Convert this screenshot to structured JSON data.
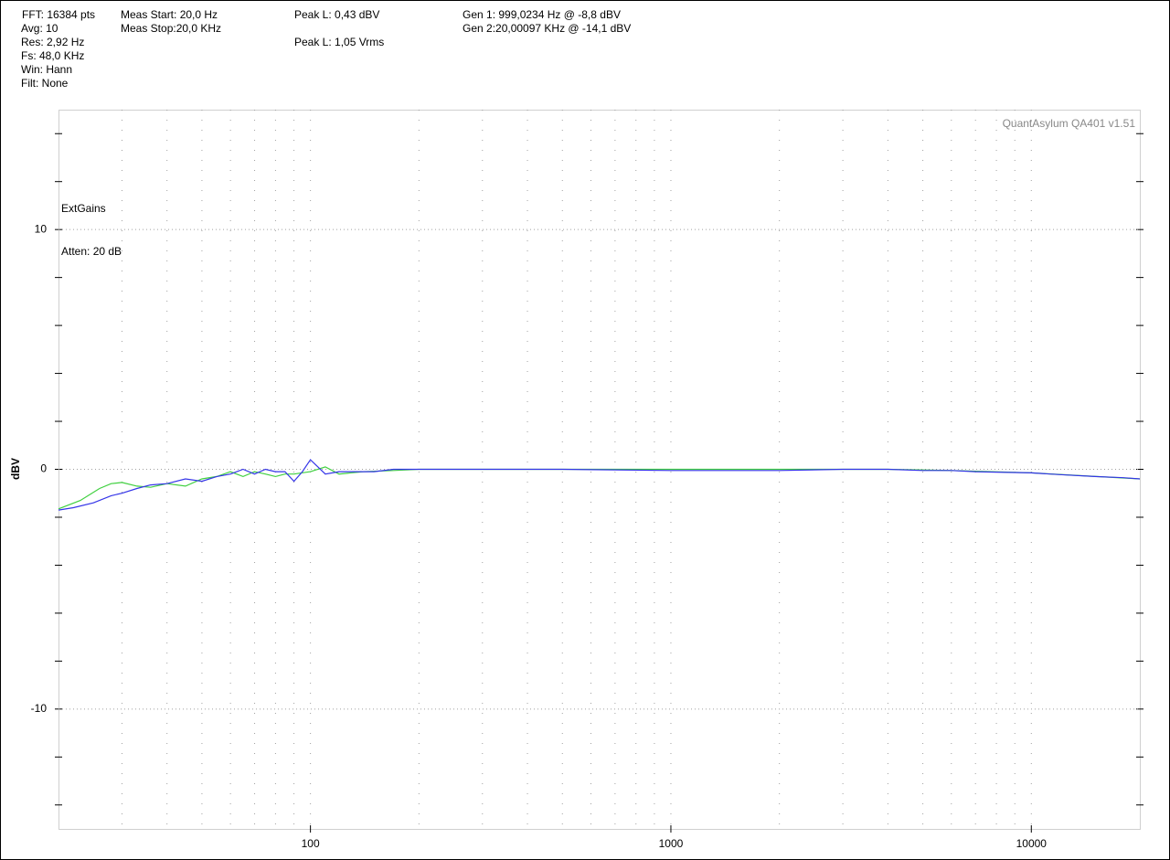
{
  "chart_data": {
    "type": "line",
    "info": [
      "FFT: 16384 pts",
      "Avg: 10",
      "Res: 2,92 Hz",
      "Fs: 48,0 KHz",
      "Win: Hann",
      "Filt: None",
      "Meas Start: 20,0 Hz",
      "Meas Stop:20,0 KHz",
      "Peak L: 0,43 dBV",
      "Peak L: 1,05 Vrms",
      "Gen 1: 999,0234 Hz @ -8,8  dBV",
      "Gen 2:20,00097 KHz @ -14,1  dBV"
    ],
    "annotations": [
      "ExtGains",
      "Atten: 20 dB",
      "QuantAsylum QA401 v1.51"
    ],
    "ylabel": "dBV",
    "xscale": "log",
    "xlim": [
      20,
      20000
    ],
    "xticks": [
      100,
      1000,
      10000
    ],
    "xgrid": [
      30,
      40,
      50,
      60,
      70,
      80,
      90,
      100,
      200,
      300,
      400,
      500,
      600,
      700,
      800,
      900,
      1000,
      2000,
      3000,
      4000,
      5000,
      6000,
      7000,
      8000,
      9000,
      10000
    ],
    "ylim": [
      -15,
      15
    ],
    "yticks": [
      -10,
      0,
      10
    ],
    "yminor": [
      -14,
      -12,
      -10,
      -8,
      -6,
      -4,
      -2,
      0,
      2,
      4,
      6,
      8,
      10,
      12,
      14
    ],
    "grid": true,
    "series": [
      {
        "color": "#40d040",
        "x": [
          20,
          23,
          26,
          28,
          30,
          33,
          36,
          40,
          45,
          50,
          55,
          60,
          65,
          70,
          75,
          80,
          85,
          90,
          100,
          110,
          120,
          140,
          170,
          200,
          300,
          500,
          1000,
          2000,
          4000,
          6000,
          10000,
          20000
        ],
        "values": [
          -1.65,
          -1.3,
          -0.8,
          -0.6,
          -0.55,
          -0.7,
          -0.75,
          -0.6,
          -0.7,
          -0.4,
          -0.3,
          -0.1,
          -0.3,
          -0.1,
          -0.2,
          -0.3,
          -0.2,
          -0.2,
          -0.1,
          0.1,
          -0.2,
          -0.1,
          -0.05,
          0,
          0,
          0,
          0,
          0,
          0,
          -0.05,
          -0.15,
          -0.4
        ]
      },
      {
        "color": "#3535e8",
        "x": [
          20,
          22,
          25,
          28,
          30,
          33,
          36,
          40,
          45,
          50,
          55,
          60,
          65,
          70,
          75,
          80,
          85,
          90,
          95,
          100,
          110,
          120,
          130,
          150,
          170,
          200,
          250,
          300,
          500,
          1000,
          2000,
          3000,
          4000,
          5000,
          6000,
          7000,
          8000,
          10000,
          12000,
          15000,
          18000,
          20000
        ],
        "values": [
          -1.7,
          -1.6,
          -1.4,
          -1.1,
          -1.0,
          -0.8,
          -0.65,
          -0.6,
          -0.4,
          -0.5,
          -0.3,
          -0.2,
          0,
          -0.2,
          0,
          -0.1,
          -0.1,
          -0.5,
          -0.1,
          0.4,
          -0.2,
          -0.1,
          -0.1,
          -0.1,
          0,
          0,
          0,
          0,
          0,
          -0.05,
          -0.05,
          0,
          0,
          -0.05,
          -0.05,
          -0.1,
          -0.12,
          -0.15,
          -0.22,
          -0.3,
          -0.35,
          -0.4
        ]
      }
    ]
  }
}
